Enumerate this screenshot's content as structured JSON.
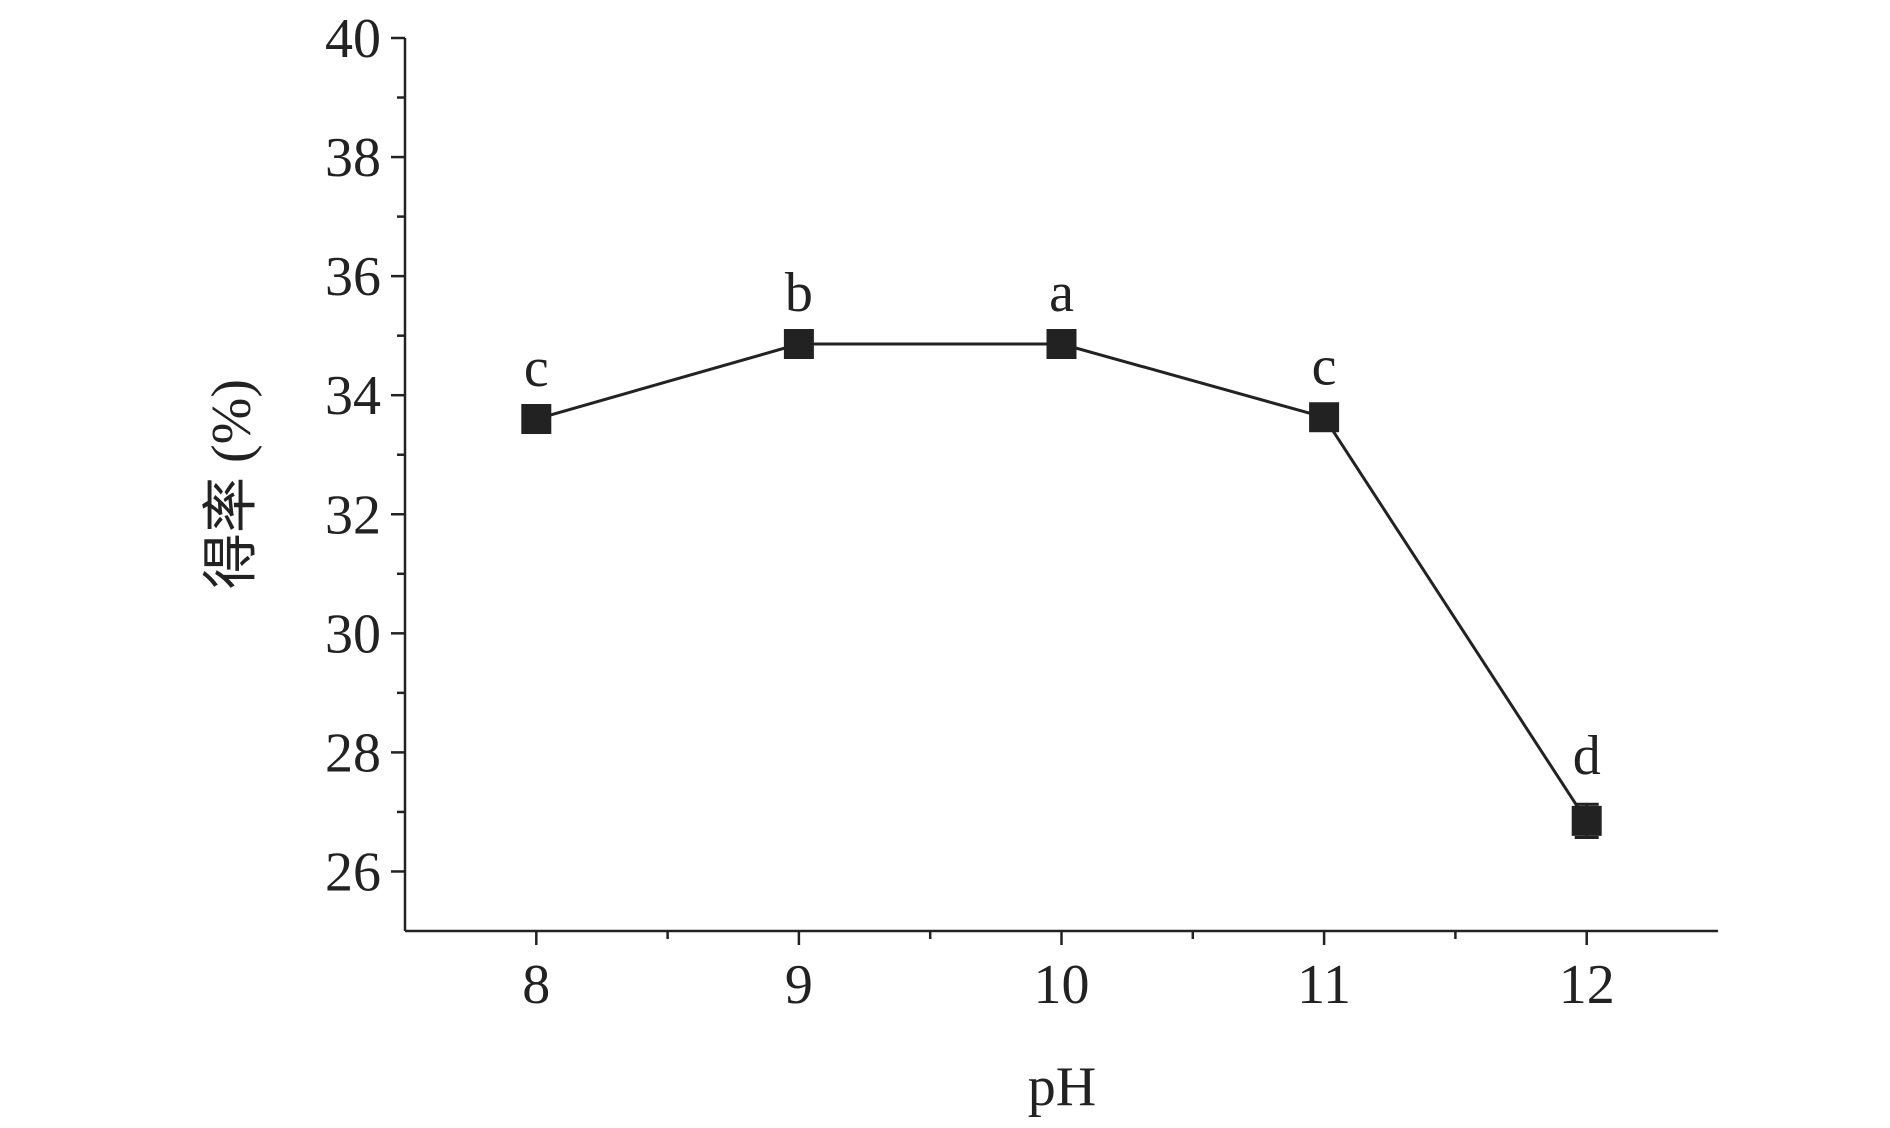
{
  "chart_data": {
    "type": "line",
    "x_label": "pH",
    "y_label": "得率 (%)",
    "x": [
      8,
      9,
      10,
      11,
      12
    ],
    "series": [
      {
        "color": "#222222",
        "values": [
          33.6,
          34.86,
          34.86,
          33.63,
          26.85
        ],
        "errors": [
          0.05,
          0.05,
          0.05,
          0.05,
          0.28
        ],
        "labels": [
          "c",
          "b",
          "a",
          "c",
          "d"
        ]
      }
    ],
    "xlim": [
      7.5,
      12.5
    ],
    "xticks": [
      8,
      9,
      10,
      11,
      12
    ],
    "ylim": [
      25,
      40
    ],
    "yticks": [
      26,
      28,
      30,
      32,
      34,
      36,
      38,
      40
    ],
    "minor_ticks": true,
    "grid": false
  }
}
